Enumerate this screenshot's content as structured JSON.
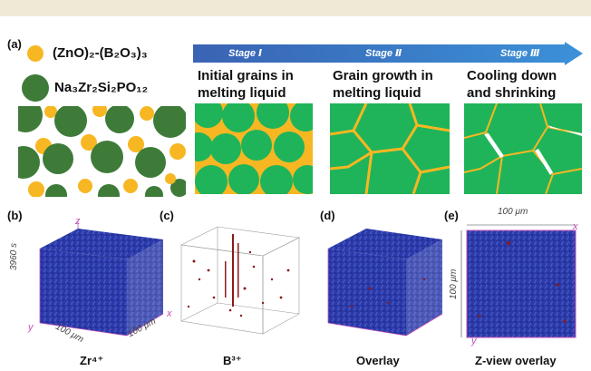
{
  "panel_labels": {
    "a": "(a)",
    "b": "(b)",
    "c": "(c)",
    "d": "(d)",
    "e": "(e)"
  },
  "legend": {
    "zno_label": "(ZnO)₂-(B₂O₃)₃",
    "nzsp_label": "Na₃Zr₂Si₂PO₁₂"
  },
  "stages": [
    {
      "label": "Stage Ⅰ",
      "description": [
        "Initial grains in",
        "melting liquid"
      ]
    },
    {
      "label": "Stage Ⅱ",
      "description": [
        "Grain growth in",
        "melting liquid"
      ]
    },
    {
      "label": "Stage Ⅲ",
      "description": [
        "Cooling down",
        "and shrinking"
      ]
    }
  ],
  "captions": {
    "b": "Zr⁴⁺",
    "c": "B³⁺",
    "d": "Overlay",
    "e": "Z-view overlay"
  },
  "axes": {
    "z": "z",
    "x": "x",
    "y": "y"
  },
  "dimensions": {
    "depth": "3960 s",
    "width_um": "100 μm",
    "length_um": "100 μm"
  },
  "colors": {
    "green": "#1fb45a",
    "dark_green": "#3e7b39",
    "yellow": "#f7b722",
    "arrow_start": "#3b73bf",
    "arrow_end": "#3a8fd6",
    "cube_blue": "#2b3aa8",
    "boron_red": "#8b1a1a",
    "axis_pink": "#c04fb5"
  }
}
